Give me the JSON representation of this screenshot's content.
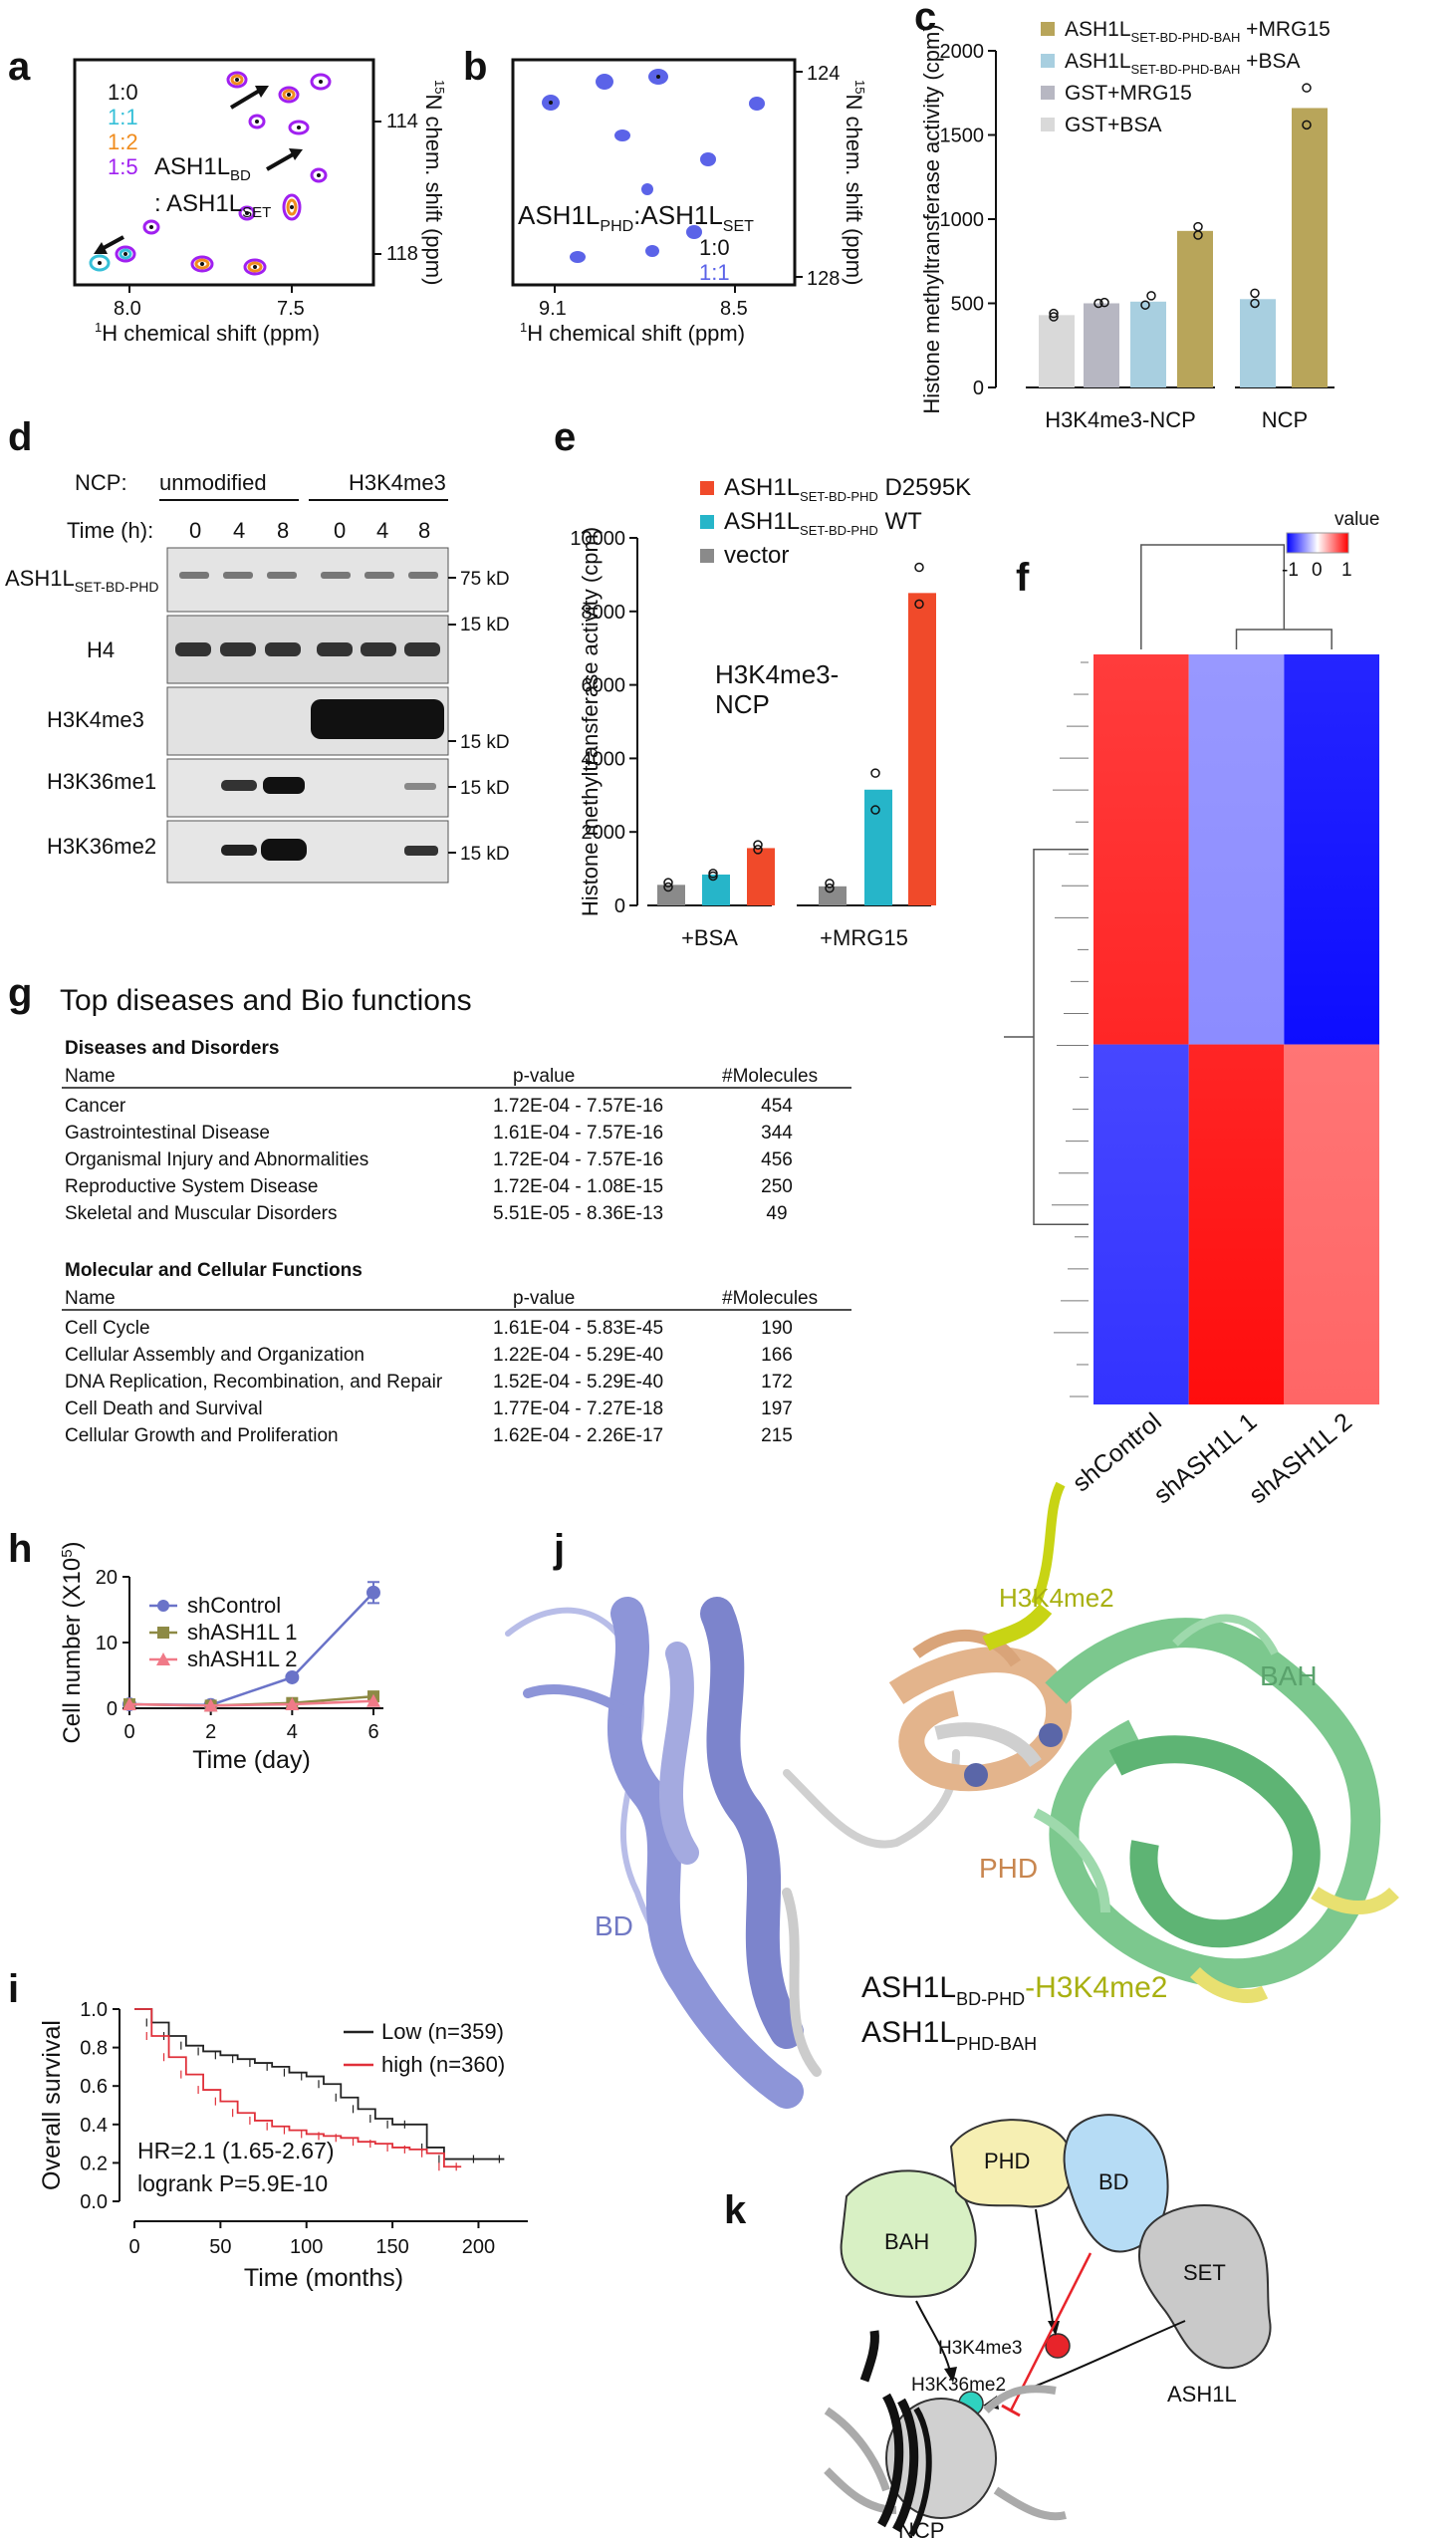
{
  "panel_labels": [
    "a",
    "b",
    "c",
    "d",
    "e",
    "f",
    "g",
    "h",
    "i",
    "j",
    "k"
  ],
  "panel_a": {
    "ratios": [
      "1:0",
      "1:1",
      "1:2",
      "1:5"
    ],
    "ratio_colors": [
      "#111111",
      "#36c0d8",
      "#f08c1e",
      "#a020f0"
    ],
    "label_line1": "ASH1L",
    "label_sub1": "BD",
    "label_line2": ": ASH1L",
    "label_sub2": "SET",
    "x_ticks": [
      "8.0",
      "7.5"
    ],
    "y_ticks": [
      "114",
      "118"
    ],
    "xlabel_sup": "1",
    "xlabel": "H chemical shift (ppm)",
    "ylabel_sup": "15",
    "ylabel": "N chem. shift (ppm)"
  },
  "panel_b": {
    "label": "ASH1L",
    "sub1": "PHD",
    "label_mid": ":ASH1L",
    "sub2": "SET",
    "ratios": [
      "1:0",
      "1:1"
    ],
    "ratio_colors": [
      "#111111",
      "#5b63e8"
    ],
    "x_ticks": [
      "9.1",
      "8.5"
    ],
    "y_ticks": [
      "124",
      "128"
    ],
    "xlabel_sup": "1",
    "xlabel": "H chemical shift (ppm)",
    "ylabel_sup": "15",
    "ylabel": "N chem. shift (ppm)"
  },
  "chart_data": [
    {
      "id": "c",
      "type": "bar",
      "ylabel": "Histone methyltransferase activity (cpm)",
      "ylim": [
        0,
        2000
      ],
      "yticks": [
        0,
        500,
        1000,
        1500,
        2000
      ],
      "groups": [
        "H3K4me3-NCP",
        "NCP"
      ],
      "legend": [
        {
          "name": "ASH1L",
          "sub": "SET-BD-PHD-BAH",
          "suffix": " +MRG15",
          "color": "#b8a55a"
        },
        {
          "name": "ASH1L",
          "sub": "SET-BD-PHD-BAH",
          "suffix": " +BSA",
          "color": "#a8cfe0"
        },
        {
          "name": "GST+MRG15",
          "sub": "",
          "suffix": "",
          "color": "#b7b7c2"
        },
        {
          "name": "GST+BSA",
          "sub": "",
          "suffix": "",
          "color": "#d9d9d9"
        }
      ],
      "bars": [
        {
          "group": 0,
          "color": "#d9d9d9",
          "value": 430,
          "points": [
            420,
            440
          ]
        },
        {
          "group": 0,
          "color": "#b7b7c2",
          "value": 500,
          "points": [
            500,
            505
          ]
        },
        {
          "group": 0,
          "color": "#a8cfe0",
          "value": 510,
          "points": [
            490,
            545
          ]
        },
        {
          "group": 0,
          "color": "#b8a55a",
          "value": 930,
          "points": [
            905,
            955
          ]
        },
        {
          "group": 1,
          "color": "#a8cfe0",
          "value": 525,
          "points": [
            500,
            560
          ]
        },
        {
          "group": 1,
          "color": "#b8a55a",
          "value": 1660,
          "points": [
            1560,
            1780
          ]
        }
      ]
    },
    {
      "id": "e",
      "type": "bar",
      "ylabel": "Histone methyltransferase activity (cpm)",
      "ylim": [
        0,
        10000
      ],
      "yticks": [
        0,
        2000,
        4000,
        6000,
        8000,
        10000
      ],
      "groups": [
        "+BSA",
        "+MRG15"
      ],
      "annotation": "H3K4me3-\nNCP",
      "legend": [
        {
          "name": "ASH1L",
          "sub": "SET-BD-PHD",
          "suffix": "  D2595K",
          "color": "#f04a2a"
        },
        {
          "name": "ASH1L",
          "sub": "SET-BD-PHD",
          "suffix": "  WT",
          "color": "#26b5c9"
        },
        {
          "name": "vector",
          "sub": "",
          "suffix": "",
          "color": "#8a8a8a"
        }
      ],
      "bars": [
        {
          "group": 0,
          "color": "#8a8a8a",
          "value": 560,
          "points": [
            500,
            620
          ]
        },
        {
          "group": 0,
          "color": "#26b5c9",
          "value": 840,
          "points": [
            800,
            870
          ]
        },
        {
          "group": 0,
          "color": "#f04a2a",
          "value": 1560,
          "points": [
            1520,
            1650
          ]
        },
        {
          "group": 1,
          "color": "#8a8a8a",
          "value": 520,
          "points": [
            470,
            600
          ]
        },
        {
          "group": 1,
          "color": "#26b5c9",
          "value": 3150,
          "points": [
            2600,
            3600
          ]
        },
        {
          "group": 1,
          "color": "#f04a2a",
          "value": 8500,
          "points": [
            8200,
            9200
          ]
        }
      ]
    },
    {
      "id": "h",
      "type": "line",
      "ylabel": "Cell number (X10",
      "ylabel_sup": "5",
      "ylabel_end": ")",
      "xlabel": "Time (day)",
      "xlim": [
        0,
        6
      ],
      "ylim": [
        0,
        20
      ],
      "xticks": [
        0,
        2,
        4,
        6
      ],
      "yticks": [
        0,
        10,
        20
      ],
      "x": [
        0,
        2,
        4,
        6
      ],
      "series": [
        {
          "name": "shControl",
          "color": "#6a73c8",
          "marker": "circle",
          "values": [
            0.6,
            0.5,
            4.7,
            17.6
          ],
          "err": [
            0,
            0,
            0,
            1.6
          ]
        },
        {
          "name": "shASH1L 1",
          "color": "#8d8a45",
          "marker": "square",
          "values": [
            0.6,
            0.4,
            0.8,
            1.8
          ],
          "err": [
            0,
            0,
            0,
            0
          ]
        },
        {
          "name": "shASH1L 2",
          "color": "#f07a88",
          "marker": "triangle",
          "values": [
            0.6,
            0.4,
            0.6,
            1.1
          ],
          "err": [
            0,
            0,
            0,
            0
          ]
        }
      ]
    },
    {
      "id": "i",
      "type": "line",
      "ylabel": "Overall survival",
      "xlabel": "Time (months)",
      "xlim": [
        0,
        220
      ],
      "ylim": [
        0,
        1
      ],
      "xticks": [
        0,
        50,
        100,
        150,
        200
      ],
      "yticks": [
        "0.0",
        "0.2",
        "0.4",
        "0.6",
        "0.8",
        "1.0"
      ],
      "annotations": [
        "HR=2.1 (1.65-2.67)",
        "logrank P=5.9E-10"
      ],
      "series": [
        {
          "name": "Low (n=359)",
          "color": "#222222",
          "x": [
            0,
            10,
            20,
            30,
            40,
            50,
            60,
            70,
            80,
            90,
            100,
            110,
            120,
            130,
            140,
            150,
            160,
            170,
            180,
            200,
            215
          ],
          "y": [
            1.0,
            0.93,
            0.86,
            0.81,
            0.78,
            0.76,
            0.74,
            0.72,
            0.7,
            0.67,
            0.65,
            0.61,
            0.54,
            0.48,
            0.43,
            0.4,
            0.4,
            0.28,
            0.22,
            0.22,
            0.22
          ]
        },
        {
          "name": "high (n=360)",
          "color": "#e0303a",
          "x": [
            0,
            10,
            20,
            30,
            40,
            50,
            60,
            70,
            80,
            90,
            100,
            110,
            120,
            130,
            140,
            150,
            160,
            170,
            180,
            190
          ],
          "y": [
            1.0,
            0.86,
            0.75,
            0.66,
            0.58,
            0.52,
            0.46,
            0.42,
            0.39,
            0.37,
            0.35,
            0.34,
            0.33,
            0.31,
            0.3,
            0.28,
            0.27,
            0.25,
            0.18,
            0.18
          ]
        }
      ]
    },
    {
      "id": "f",
      "type": "heatmap",
      "legend_title": "value",
      "legend_ticks": [
        "-1",
        "0",
        "1"
      ],
      "columns": [
        "shControl",
        "shASH1L 1",
        "shASH1L 2"
      ],
      "clusters": [
        {
          "rows_fraction": 0.52,
          "values": [
            0.85,
            -0.45,
            -0.95
          ]
        },
        {
          "rows_fraction": 0.48,
          "values": [
            -0.8,
            0.95,
            0.6
          ]
        }
      ]
    }
  ],
  "panel_d": {
    "ncp_label": "NCP:",
    "conditions": [
      "unmodified",
      "H3K4me3"
    ],
    "time_label": "Time (h):",
    "times": [
      "0",
      "4",
      "8",
      "0",
      "4",
      "8"
    ],
    "rows": [
      {
        "name": "ASH1L",
        "sub": "SET-BD-PHD",
        "marker": "75 kD"
      },
      {
        "name": "H4",
        "sub": "",
        "marker": "15 kD"
      },
      {
        "name": "H3K4me3",
        "sub": "",
        "marker": "15 kD"
      },
      {
        "name": "H3K36me1",
        "sub": "",
        "marker": "15 kD"
      },
      {
        "name": "H3K36me2",
        "sub": "",
        "marker": "15 kD"
      }
    ]
  },
  "panel_g": {
    "title": "Top diseases and Bio functions",
    "sections": [
      {
        "heading": "Diseases and Disorders",
        "columns": [
          "Name",
          "p-value",
          "#Molecules"
        ],
        "rows": [
          [
            "Cancer",
            "1.72E-04 - 7.57E-16",
            "454"
          ],
          [
            "Gastrointestinal Disease",
            "1.61E-04 - 7.57E-16",
            "344"
          ],
          [
            "Organismal Injury and Abnormalities",
            "1.72E-04 - 7.57E-16",
            "456"
          ],
          [
            "Reproductive System Disease",
            "1.72E-04 - 1.08E-15",
            "250"
          ],
          [
            "Skeletal and Muscular Disorders",
            "5.51E-05 - 8.36E-13",
            "49"
          ]
        ]
      },
      {
        "heading": "Molecular and Cellular Functions",
        "columns": [
          "Name",
          "p-value",
          "#Molecules"
        ],
        "rows": [
          [
            "Cell Cycle",
            "1.61E-04 - 5.83E-45",
            "190"
          ],
          [
            "Cellular Assembly and Organization",
            "1.22E-04 - 5.29E-40",
            "166"
          ],
          [
            "DNA Replication, Recombination, and Repair",
            "1.52E-04 - 5.29E-40",
            "172"
          ],
          [
            "Cell Death and Survival",
            "1.77E-04 - 7.27E-18",
            "197"
          ],
          [
            "Cellular Growth and Proliferation",
            "1.62E-04 - 2.26E-17",
            "215"
          ]
        ]
      }
    ]
  },
  "panel_j": {
    "labels": {
      "h3": "H3K4me2",
      "bah": "BAH",
      "phd": "PHD",
      "bd": "BD"
    },
    "legend_line1": "ASH1L",
    "legend_sub1": "BD-PHD",
    "legend_suffix1": "-H3K4me2",
    "legend_line2": "ASH1L",
    "legend_sub2": "PHD-BAH",
    "colors": {
      "bd": "#8d95d8",
      "phd": "#e3b48c",
      "bah": "#7cc88e",
      "h3": "#c8d414",
      "yellow": "#e8e070"
    }
  },
  "panel_k": {
    "domains": [
      "BAH",
      "PHD",
      "BD",
      "SET"
    ],
    "marks": [
      "H3K4me3",
      "H3K36me2"
    ],
    "protein": "ASH1L",
    "ncp": "NCP",
    "colors": {
      "bah": "#d8f0c4",
      "phd": "#f6efb3",
      "bd": "#b6dcf5",
      "set": "#c9c9c9",
      "k4": "#e8242a",
      "k36": "#2fd2c0"
    }
  }
}
